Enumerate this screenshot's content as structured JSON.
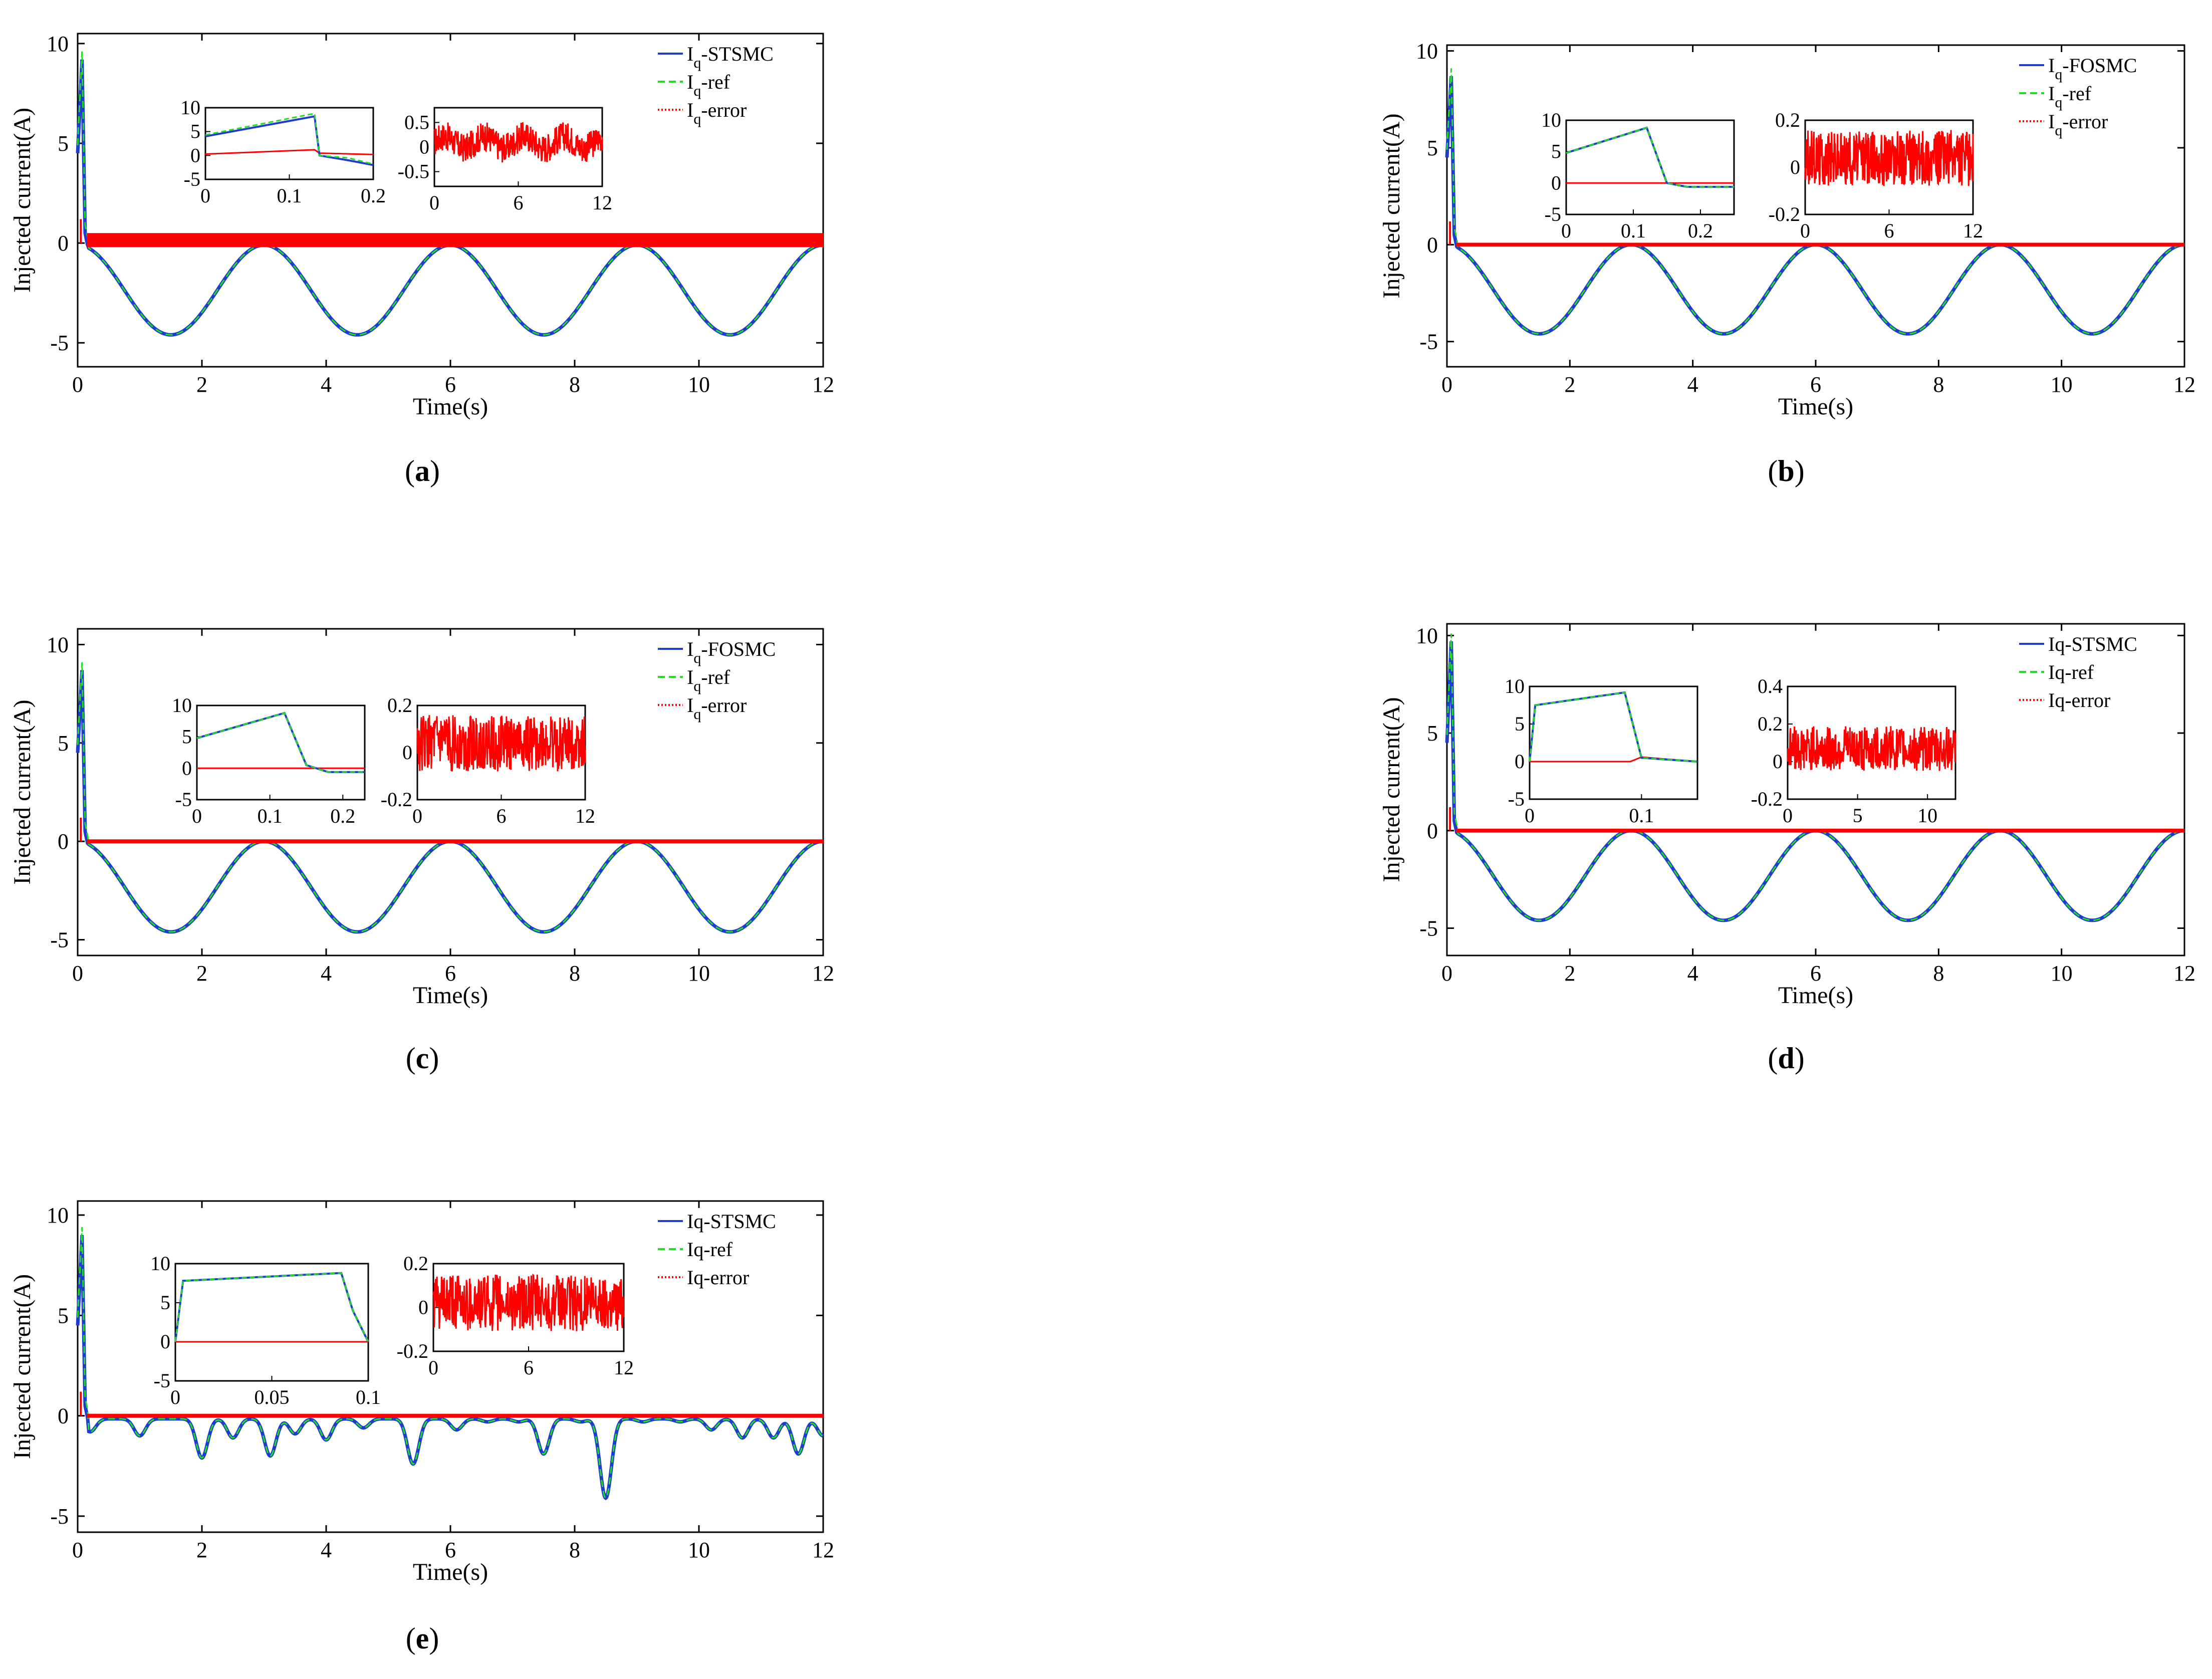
{
  "figure": {
    "description_labels": [
      "(a)",
      "(b)",
      "(c)",
      "(d)",
      "(e)"
    ]
  },
  "colors": {
    "actual": "#1f3ccf",
    "reference": "#22dd22",
    "error": "#ff0000",
    "axis": "#000000"
  },
  "chart_data": [
    {
      "id": "a",
      "type": "line",
      "caption": "a",
      "xlabel": "Time(s)",
      "ylabel": "Injected current(A)",
      "xlim": [
        0,
        12
      ],
      "ylim": [
        -6.2,
        10.5
      ],
      "xticks": [
        0,
        2,
        4,
        6,
        8,
        10,
        12
      ],
      "yticks": [
        -5,
        0,
        5,
        10
      ],
      "legend": [
        {
          "main": "I",
          "sub": "q",
          "suffix": "-STSMC",
          "style": "actual"
        },
        {
          "main": "I",
          "sub": "q",
          "suffix": "-ref",
          "style": "reference"
        },
        {
          "main": "I",
          "sub": "q",
          "suffix": "-error",
          "style": "error"
        }
      ],
      "signal": {
        "kind": "sine",
        "min": -4.6,
        "max": -0.1,
        "period": 3.0,
        "peak": 9.2,
        "error_band": 0.35
      },
      "insets": [
        {
          "type": "line",
          "xlim": [
            0,
            0.2
          ],
          "ylim": [
            -5,
            10
          ],
          "xticks": [
            "0",
            "0.1",
            "0.2"
          ],
          "yticks": [
            "10",
            "5",
            "0",
            "-5"
          ],
          "actual": [
            [
              0,
              4
            ],
            [
              0.13,
              8.2
            ],
            [
              0.136,
              0
            ],
            [
              0.17,
              -1
            ],
            [
              0.2,
              -2
            ]
          ],
          "reference": [
            [
              0,
              4.3
            ],
            [
              0.13,
              8.8
            ],
            [
              0.136,
              0
            ],
            [
              0.17,
              -0.5
            ],
            [
              0.2,
              -1.8
            ]
          ],
          "error": [
            [
              0,
              0.3
            ],
            [
              0.13,
              1.2
            ],
            [
              0.136,
              0.5
            ],
            [
              0.2,
              0.2
            ]
          ]
        },
        {
          "type": "noise",
          "xlim": [
            0,
            12
          ],
          "ylim": [
            -0.8,
            0.8
          ],
          "xticks": [
            "0",
            "6",
            "12"
          ],
          "yticks": [
            "0.5",
            "0",
            "-0.5"
          ],
          "center": 0.1,
          "amplitude": 0.3
        }
      ]
    },
    {
      "id": "b",
      "type": "line",
      "caption": "b",
      "xlabel": "Time(s)",
      "ylabel": "Injected current(A)",
      "xlim": [
        0,
        12
      ],
      "ylim": [
        -6.3,
        10.3
      ],
      "xticks": [
        0,
        2,
        4,
        6,
        8,
        10,
        12
      ],
      "yticks": [
        -5,
        0,
        5,
        10
      ],
      "legend": [
        {
          "main": "I",
          "sub": "q",
          "suffix": "-FOSMC",
          "style": "actual"
        },
        {
          "main": "I",
          "sub": "q",
          "suffix": "-ref",
          "style": "reference"
        },
        {
          "main": "I",
          "sub": "q",
          "suffix": "-error",
          "style": "error"
        }
      ],
      "signal": {
        "kind": "sine",
        "min": -4.6,
        "max": 0,
        "period": 3.0,
        "peak": 8.7,
        "error_band": 0.1
      },
      "insets": [
        {
          "type": "line",
          "xlim": [
            0,
            0.25
          ],
          "ylim": [
            -5,
            10
          ],
          "xticks": [
            "0",
            "0.1",
            "0.2"
          ],
          "yticks": [
            "10",
            "5",
            "0",
            "-5"
          ],
          "actual": [
            [
              0,
              4.8
            ],
            [
              0.12,
              8.8
            ],
            [
              0.15,
              0
            ],
            [
              0.18,
              -0.6
            ],
            [
              0.25,
              -0.6
            ]
          ],
          "reference": [
            [
              0,
              4.8
            ],
            [
              0.12,
              8.8
            ],
            [
              0.15,
              0
            ],
            [
              0.18,
              -0.6
            ],
            [
              0.25,
              -0.6
            ]
          ],
          "error": [
            [
              0,
              0
            ],
            [
              0.25,
              0
            ]
          ]
        },
        {
          "type": "noise",
          "xlim": [
            0,
            12
          ],
          "ylim": [
            -0.2,
            0.2
          ],
          "xticks": [
            "0",
            "6",
            "12"
          ],
          "yticks": [
            "0.2",
            "0",
            "-0.2"
          ],
          "center": 0.04,
          "amplitude": 0.12
        }
      ]
    },
    {
      "id": "c",
      "type": "line",
      "caption": "c",
      "xlabel": "Time(s)",
      "ylabel": "Injected current(A)",
      "xlim": [
        0,
        12
      ],
      "ylim": [
        -5.8,
        10.8
      ],
      "xticks": [
        0,
        2,
        4,
        6,
        8,
        10,
        12
      ],
      "yticks": [
        -5,
        0,
        5,
        10
      ],
      "legend": [
        {
          "main": "I",
          "sub": "q",
          "suffix": "-FOSMC",
          "style": "actual"
        },
        {
          "main": "I",
          "sub": "q",
          "suffix": "-ref",
          "style": "reference"
        },
        {
          "main": "I",
          "sub": "q",
          "suffix": "-error",
          "style": "error"
        }
      ],
      "signal": {
        "kind": "sine",
        "min": -4.6,
        "max": 0,
        "period": 3.0,
        "peak": 8.7,
        "error_band": 0.1
      },
      "insets": [
        {
          "type": "line",
          "xlim": [
            0,
            0.23
          ],
          "ylim": [
            -5,
            10
          ],
          "xticks": [
            "0",
            "0.1",
            "0.2"
          ],
          "yticks": [
            "10",
            "5",
            "0",
            "-5"
          ],
          "actual": [
            [
              0,
              4.8
            ],
            [
              0.12,
              8.8
            ],
            [
              0.15,
              0.5
            ],
            [
              0.18,
              -0.6
            ],
            [
              0.23,
              -0.6
            ]
          ],
          "reference": [
            [
              0,
              4.8
            ],
            [
              0.12,
              8.8
            ],
            [
              0.15,
              0.5
            ],
            [
              0.18,
              -0.6
            ],
            [
              0.23,
              -0.6
            ]
          ],
          "error": [
            [
              0,
              0
            ],
            [
              0.23,
              0
            ]
          ]
        },
        {
          "type": "noise",
          "xlim": [
            0,
            12
          ],
          "ylim": [
            -0.2,
            0.2
          ],
          "xticks": [
            "0",
            "6",
            "12"
          ],
          "yticks": [
            "0.2",
            "0",
            "-0.2"
          ],
          "center": 0.04,
          "amplitude": 0.12
        }
      ]
    },
    {
      "id": "d",
      "type": "line",
      "caption": "d",
      "xlabel": "Time(s)",
      "ylabel": "Injected current(A)",
      "xlim": [
        0,
        12
      ],
      "ylim": [
        -6.4,
        10.6
      ],
      "xticks": [
        0,
        2,
        4,
        6,
        8,
        10,
        12
      ],
      "yticks": [
        -5,
        0,
        5,
        10
      ],
      "legend": [
        {
          "main": "Iq-STSMC",
          "sub": "",
          "suffix": "",
          "style": "actual"
        },
        {
          "main": "Iq-ref",
          "sub": "",
          "suffix": "",
          "style": "reference"
        },
        {
          "main": "Iq-error",
          "sub": "",
          "suffix": "",
          "style": "error"
        }
      ],
      "signal": {
        "kind": "sine",
        "min": -4.6,
        "max": 0,
        "period": 3.0,
        "peak": 9.7,
        "error_band": 0.1
      },
      "insets": [
        {
          "type": "line",
          "xlim": [
            0,
            0.15
          ],
          "ylim": [
            -5,
            10
          ],
          "xticks": [
            "0",
            "0.1"
          ],
          "yticks": [
            "10",
            "5",
            "0",
            "-5"
          ],
          "actual": [
            [
              0,
              0
            ],
            [
              0.005,
              7.5
            ],
            [
              0.085,
              9.2
            ],
            [
              0.1,
              0.5
            ],
            [
              0.15,
              0
            ]
          ],
          "reference": [
            [
              0,
              0
            ],
            [
              0.005,
              7.5
            ],
            [
              0.085,
              9.2
            ],
            [
              0.1,
              0.5
            ],
            [
              0.15,
              0
            ]
          ],
          "error": [
            [
              0,
              0
            ],
            [
              0.09,
              0
            ],
            [
              0.1,
              0.6
            ],
            [
              0.15,
              0
            ]
          ]
        },
        {
          "type": "noise",
          "xlim": [
            0,
            12
          ],
          "ylim": [
            -0.2,
            0.4
          ],
          "xticks": [
            "0",
            "5",
            "10"
          ],
          "yticks": [
            "0.4",
            "0.2",
            "0",
            "-0.2"
          ],
          "center": 0.07,
          "amplitude": 0.12
        }
      ]
    },
    {
      "id": "e",
      "type": "line",
      "caption": "e",
      "xlabel": "Time(s)",
      "ylabel": "Injected current(A)",
      "xlim": [
        0,
        12
      ],
      "ylim": [
        -5.8,
        10.7
      ],
      "xticks": [
        0,
        2,
        4,
        6,
        8,
        10,
        12
      ],
      "yticks": [
        -5,
        0,
        5,
        10
      ],
      "legend": [
        {
          "main": "Iq-STSMC",
          "sub": "",
          "suffix": "",
          "style": "actual"
        },
        {
          "main": "Iq-ref",
          "sub": "",
          "suffix": "",
          "style": "reference"
        },
        {
          "main": "Iq-error",
          "sub": "",
          "suffix": "",
          "style": "error"
        }
      ],
      "signal": {
        "kind": "dips",
        "peak": 9.0,
        "error_band": 0.1,
        "dips": [
          [
            0.2,
            -0.8
          ],
          [
            1.0,
            -1.0
          ],
          [
            2.0,
            -2.1
          ],
          [
            2.5,
            -1.1
          ],
          [
            3.1,
            -2.0
          ],
          [
            3.5,
            -0.9
          ],
          [
            4.0,
            -1.2
          ],
          [
            4.6,
            -0.6
          ],
          [
            5.4,
            -2.4
          ],
          [
            6.1,
            -0.7
          ],
          [
            6.6,
            -0.3
          ],
          [
            7.1,
            -0.3
          ],
          [
            7.5,
            -1.9
          ],
          [
            8.1,
            -0.3
          ],
          [
            8.5,
            -4.1
          ],
          [
            9.1,
            -0.3
          ],
          [
            9.7,
            -0.3
          ],
          [
            10.2,
            -0.7
          ],
          [
            10.7,
            -1.1
          ],
          [
            11.2,
            -1.1
          ],
          [
            11.6,
            -1.9
          ],
          [
            12.0,
            -1.0
          ]
        ]
      },
      "insets": [
        {
          "type": "line",
          "xlim": [
            0,
            0.1
          ],
          "ylim": [
            -5,
            10
          ],
          "xticks": [
            "0",
            "0.05",
            "0.1"
          ],
          "yticks": [
            "10",
            "5",
            "0",
            "-5"
          ],
          "actual": [
            [
              0,
              0
            ],
            [
              0.004,
              7.8
            ],
            [
              0.086,
              8.8
            ],
            [
              0.092,
              4
            ],
            [
              0.1,
              0
            ]
          ],
          "reference": [
            [
              0,
              0
            ],
            [
              0.004,
              7.8
            ],
            [
              0.086,
              8.8
            ],
            [
              0.092,
              4
            ],
            [
              0.1,
              0
            ]
          ],
          "error": [
            [
              0,
              0
            ],
            [
              0.1,
              0
            ]
          ]
        },
        {
          "type": "noise",
          "xlim": [
            0,
            12
          ],
          "ylim": [
            -0.2,
            0.2
          ],
          "xticks": [
            "0",
            "6",
            "12"
          ],
          "yticks": [
            "0.2",
            "0",
            "-0.2"
          ],
          "center": 0.02,
          "amplitude": 0.13
        }
      ]
    }
  ]
}
